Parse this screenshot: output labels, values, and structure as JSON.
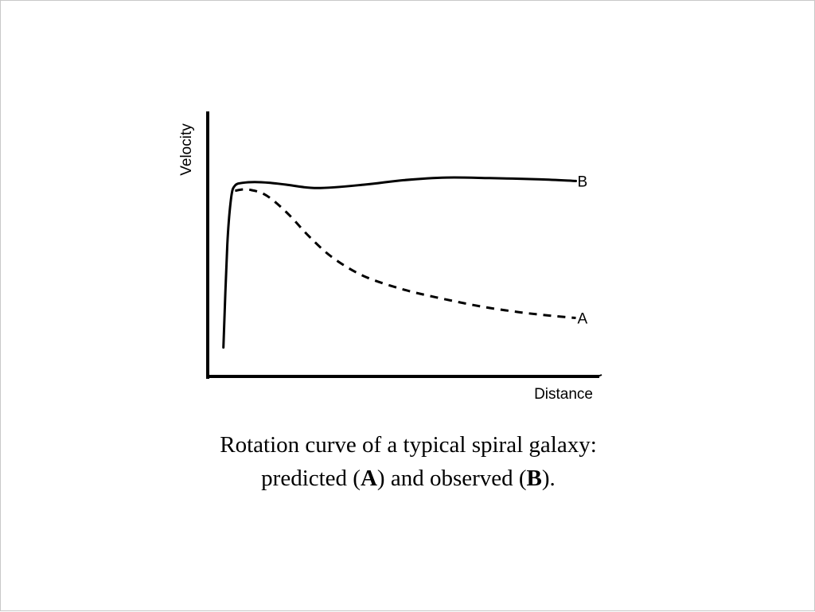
{
  "chart_data": {
    "type": "line",
    "xlabel": "Distance",
    "ylabel": "Velocity",
    "xlim": [
      0,
      100
    ],
    "ylim": [
      0,
      100
    ],
    "grid": false,
    "legend": "none",
    "series": [
      {
        "name": "B",
        "style": "solid",
        "color": "#000000",
        "x": [
          4,
          5,
          6,
          7,
          9,
          12,
          16,
          20,
          28,
          40,
          50,
          61,
          72,
          85,
          94
        ],
        "y": [
          11,
          50,
          68,
          72.5,
          73.5,
          73.8,
          73.5,
          72.8,
          71.5,
          72.8,
          74.5,
          75.5,
          75.3,
          74.8,
          74.2
        ]
      },
      {
        "name": "A",
        "style": "dashed",
        "color": "#000000",
        "x": [
          7,
          9,
          11,
          14,
          17,
          21,
          26,
          32,
          40,
          50,
          60,
          70,
          80,
          88,
          94
        ],
        "y": [
          70.5,
          71,
          70.8,
          69.5,
          66.5,
          61,
          53,
          45,
          38,
          33,
          29.5,
          26.5,
          24.3,
          23,
          22.2
        ]
      }
    ]
  },
  "caption": {
    "line1": "Rotation curve of a typical spiral galaxy:",
    "line2_a": "predicted (",
    "bold_a": "A",
    "line2_b": ") and observed (",
    "bold_b": "B",
    "line2_c": ")."
  }
}
